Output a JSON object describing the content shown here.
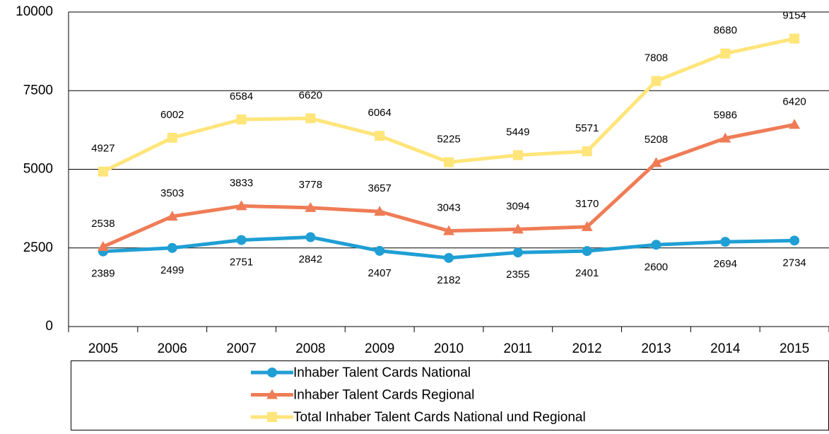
{
  "chart_data": {
    "type": "line",
    "categories": [
      "2005",
      "2006",
      "2007",
      "2008",
      "2009",
      "2010",
      "2011",
      "2012",
      "2013",
      "2014",
      "2015"
    ],
    "series": [
      {
        "name": "Inhaber Talent Cards National",
        "color": "#1f9fd4",
        "marker": "circle",
        "label_position": "below",
        "values": [
          2389,
          2499,
          2751,
          2842,
          2407,
          2182,
          2355,
          2401,
          2600,
          2694,
          2734
        ]
      },
      {
        "name": "Inhaber Talent Cards Regional",
        "color": "#ef7c56",
        "marker": "triangle",
        "label_position": "above",
        "values": [
          2538,
          3503,
          3833,
          3778,
          3657,
          3043,
          3094,
          3170,
          5208,
          5986,
          6420
        ]
      },
      {
        "name": "Total Inhaber Talent Cards National und Regional",
        "color": "#ffe57a",
        "marker": "square",
        "label_position": "above",
        "values": [
          4927,
          6002,
          6584,
          6620,
          6064,
          5225,
          5449,
          5571,
          7808,
          8680,
          9154
        ]
      }
    ],
    "ylim": [
      0,
      10000
    ],
    "yticks": [
      0,
      2500,
      5000,
      7500,
      10000
    ],
    "grid": true,
    "legend": "bottom"
  }
}
